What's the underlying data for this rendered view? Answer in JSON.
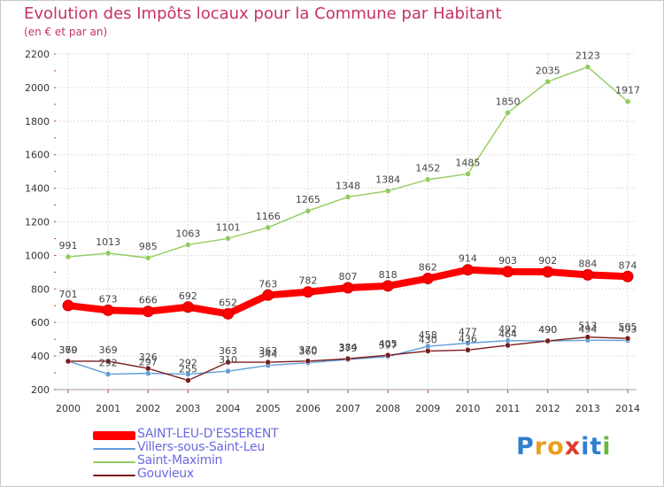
{
  "title": "Evolution des Impôts locaux pour la Commune par Habitant",
  "subtitle": "(en € et par an)",
  "logo": [
    "P",
    "r",
    "o",
    "x",
    "i",
    "t",
    "i"
  ],
  "logo_colors": [
    "#2f7fd0",
    "#e8a01c",
    "#e8a01c",
    "#e03a2a",
    "#2f7fd0",
    "#2f7fd0",
    "#66b93a"
  ],
  "chart_data": {
    "type": "line",
    "title": "Evolution des Impôts locaux pour la Commune par Habitant",
    "subtitle": "(en € et par an)",
    "x": [
      "2000",
      "2001",
      "2002",
      "2003",
      "2004",
      "2005",
      "2006",
      "2007",
      "2008",
      "2009",
      "2010",
      "2011",
      "2012",
      "2013",
      "2014"
    ],
    "ylim": [
      200,
      2200
    ],
    "yticks": [
      200,
      400,
      600,
      800,
      1000,
      1200,
      1400,
      1600,
      1800,
      2000,
      2200
    ],
    "grid": true,
    "legend_position": "bottom-left",
    "series": [
      {
        "name": "SAINT-LEU-D'ESSERENT",
        "color": "#ff0000",
        "values": [
          701,
          673,
          666,
          692,
          652,
          763,
          782,
          807,
          818,
          862,
          914,
          903,
          902,
          884,
          874
        ]
      },
      {
        "name": "Villers-sous-Saint-Leu",
        "color": "#5f9ed9",
        "values": [
          370,
          292,
          297,
          292,
          310,
          344,
          360,
          379,
          397,
          458,
          477,
          492,
          490,
          494,
          493
        ]
      },
      {
        "name": "Saint-Maximin",
        "color": "#8fcc5c",
        "values": [
          991,
          1013,
          985,
          1063,
          1101,
          1166,
          1265,
          1348,
          1384,
          1452,
          1485,
          1850,
          2035,
          2123,
          1917
        ]
      },
      {
        "name": "Gouvieux",
        "color": "#7a1a1a",
        "values": [
          369,
          369,
          326,
          255,
          363,
          363,
          370,
          384,
          405,
          430,
          436,
          464,
          490,
          513,
          505
        ]
      }
    ]
  }
}
